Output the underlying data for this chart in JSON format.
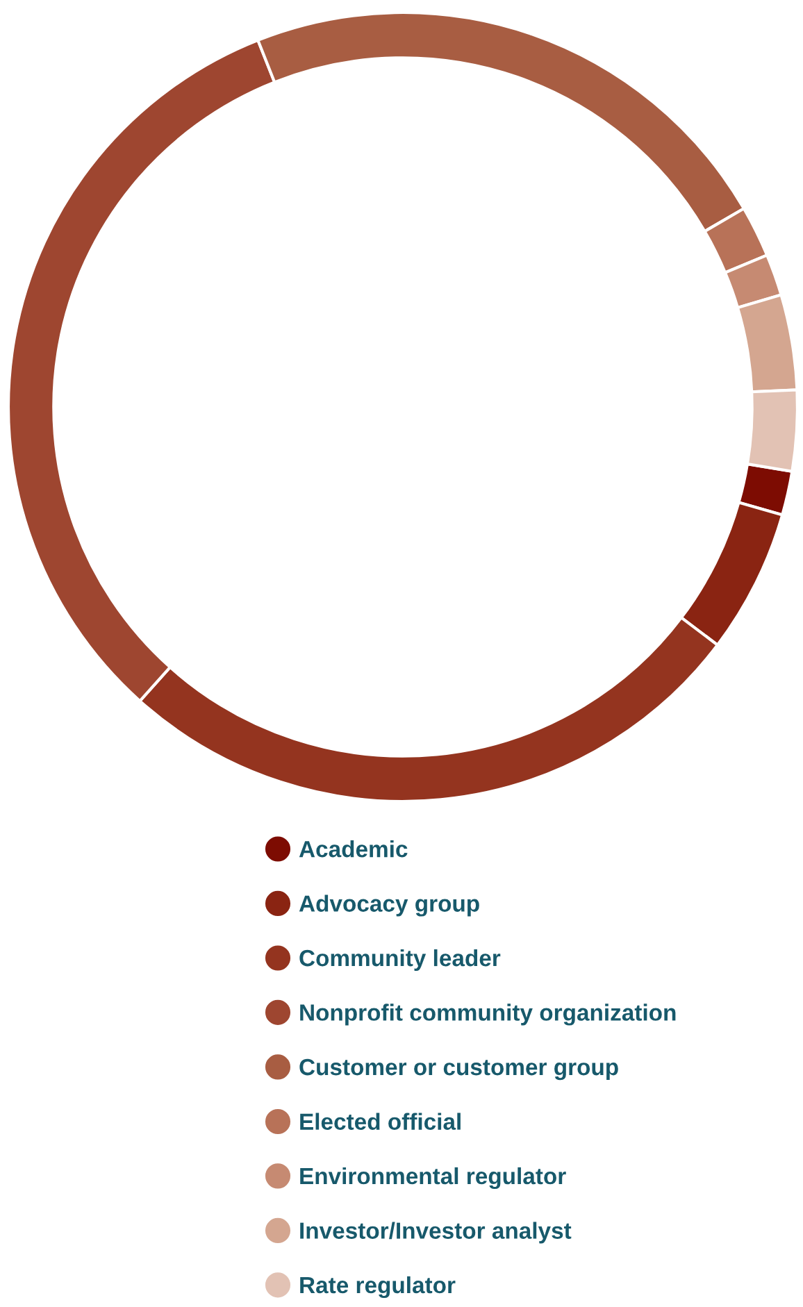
{
  "chart_data": {
    "type": "donut",
    "categories": [
      "Academic",
      "Advocacy group",
      "Community leader",
      "Nonprofit community organization",
      "Customer or customer group",
      "Elected official",
      "Environmental regulator",
      "Investor/Investor analyst",
      "Rate regulator"
    ],
    "values": [
      1.8,
      5.9,
      26.3,
      32.4,
      22.6,
      2.1,
      1.7,
      3.9,
      3.3
    ],
    "colors": [
      "#7d0c02",
      "#8a2412",
      "#94341f",
      "#9e4630",
      "#a85d42",
      "#b87258",
      "#c68a72",
      "#d4a690",
      "#e2c2b4"
    ],
    "legend": "bottom"
  }
}
